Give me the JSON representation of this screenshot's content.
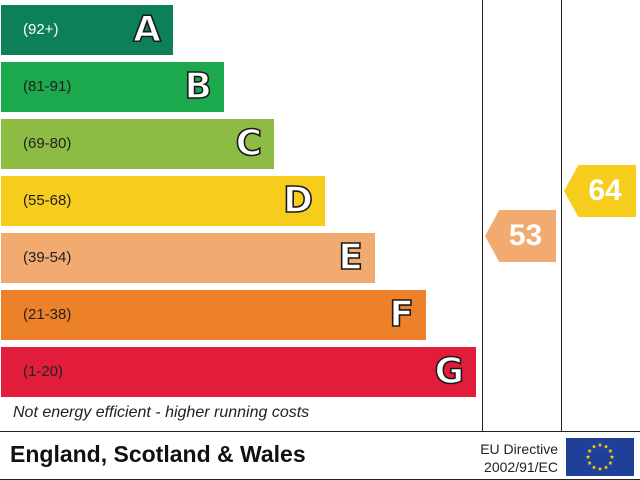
{
  "chart_data": {
    "type": "bar",
    "title": "",
    "bands": [
      {
        "letter": "A",
        "range": "(92+)",
        "color": "#0e8057"
      },
      {
        "letter": "B",
        "range": "(81-91)",
        "color": "#1ca84c"
      },
      {
        "letter": "C",
        "range": "(69-80)",
        "color": "#8dbc45"
      },
      {
        "letter": "D",
        "range": "(55-68)",
        "color": "#f6cc1d"
      },
      {
        "letter": "E",
        "range": "(39-54)",
        "color": "#f1aa6f"
      },
      {
        "letter": "F",
        "range": "(21-38)",
        "color": "#ed812a"
      },
      {
        "letter": "G",
        "range": "(1-20)",
        "color": "#e21d3b"
      }
    ],
    "current_rating": {
      "value": "53",
      "band": "E",
      "color": "#f1aa6f"
    },
    "potential_rating": {
      "value": "64",
      "band": "D",
      "color": "#f6cc1d"
    }
  },
  "caption": "Not energy efficient - higher running costs",
  "footer": {
    "region": "England, Scotland & Wales",
    "directive_line1": "EU Directive",
    "directive_line2": "2002/91/EC"
  }
}
